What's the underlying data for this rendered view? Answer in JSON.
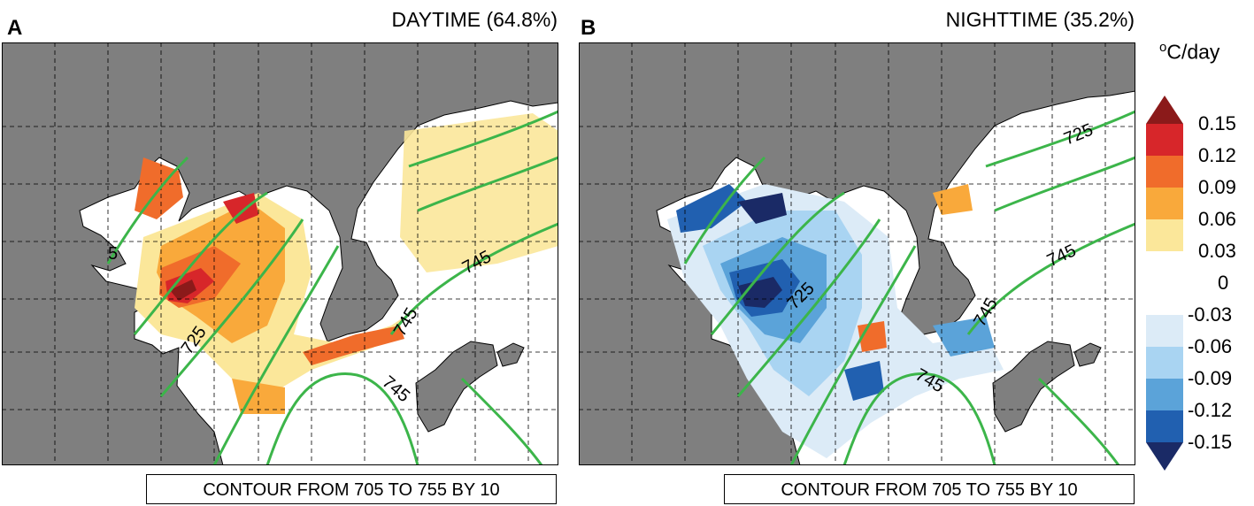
{
  "panels": [
    {
      "letter": "A",
      "title": "DAYTIME (64.8%)",
      "contour_note": "CONTOUR FROM 705 TO 755 BY 10",
      "contour_labels": [
        "725",
        "745",
        "745",
        "745",
        "5"
      ]
    },
    {
      "letter": "B",
      "title": "NIGHTTIME (35.2%)",
      "contour_note": "CONTOUR FROM 705 TO 755 BY 10",
      "contour_labels": [
        "725",
        "725",
        "745",
        "745",
        "745"
      ]
    }
  ],
  "colorbar": {
    "unit": "°C/day",
    "unit_prefix": "o",
    "unit_main": "C/day",
    "labels": [
      "0.15",
      "0.12",
      "0.09",
      "0.06",
      "0.03",
      "0",
      "-0.03",
      "-0.06",
      "-0.09",
      "-0.12",
      "-0.15"
    ],
    "colors": [
      "#8b1a1a",
      "#d7262a",
      "#f06c2b",
      "#f9a93b",
      "#fbe79a",
      "#ffffff",
      "#dcebf7",
      "#a9d4f2",
      "#5ba3d9",
      "#2160b0",
      "#1a2a66"
    ]
  },
  "colors": {
    "ocean": "#7f7f7f",
    "land": "#ffffff",
    "contour": "#3cb54a",
    "grid": "#000000"
  }
}
